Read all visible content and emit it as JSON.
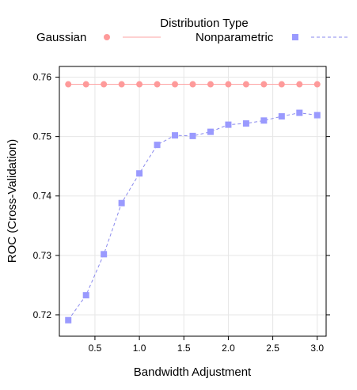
{
  "chart_data": {
    "type": "line",
    "xlabel": "Bandwidth Adjustment",
    "ylabel": "ROC (Cross-Validation)",
    "xlim": [
      0.1,
      3.1
    ],
    "ylim": [
      0.7164,
      0.7618
    ],
    "x_ticks": [
      0.5,
      1.0,
      1.5,
      2.0,
      2.5,
      3.0
    ],
    "x_tick_labels": [
      "0.5",
      "1.0",
      "1.5",
      "2.0",
      "2.5",
      "3.0"
    ],
    "y_ticks": [
      0.72,
      0.73,
      0.74,
      0.75,
      0.76
    ],
    "y_tick_labels": [
      "0.72",
      "0.73",
      "0.74",
      "0.75",
      "0.76"
    ],
    "grid": true,
    "legend": {
      "title": "Distribution Type",
      "placement": "top"
    },
    "x": [
      0.2,
      0.4,
      0.6,
      0.8,
      1.0,
      1.2,
      1.4,
      1.6,
      1.8,
      2.0,
      2.2,
      2.4,
      2.6,
      2.8,
      3.0
    ],
    "series": [
      {
        "name": "Gaussian",
        "color": "#fe9a9a",
        "line_color": "#fea3a3",
        "marker": "circle",
        "line_style": "solid",
        "values": [
          0.7588,
          0.7588,
          0.7588,
          0.7588,
          0.7588,
          0.7588,
          0.7588,
          0.7588,
          0.7588,
          0.7588,
          0.7588,
          0.7588,
          0.7588,
          0.7588,
          0.7588
        ]
      },
      {
        "name": "Nonparametric",
        "color": "#9a9afe",
        "line_color": "#8a8aee",
        "marker": "square",
        "line_style": "dashed",
        "values": [
          0.7191,
          0.7233,
          0.7302,
          0.7388,
          0.7438,
          0.7486,
          0.7502,
          0.7501,
          0.7508,
          0.752,
          0.7522,
          0.7527,
          0.7534,
          0.754,
          0.7536
        ]
      }
    ]
  }
}
